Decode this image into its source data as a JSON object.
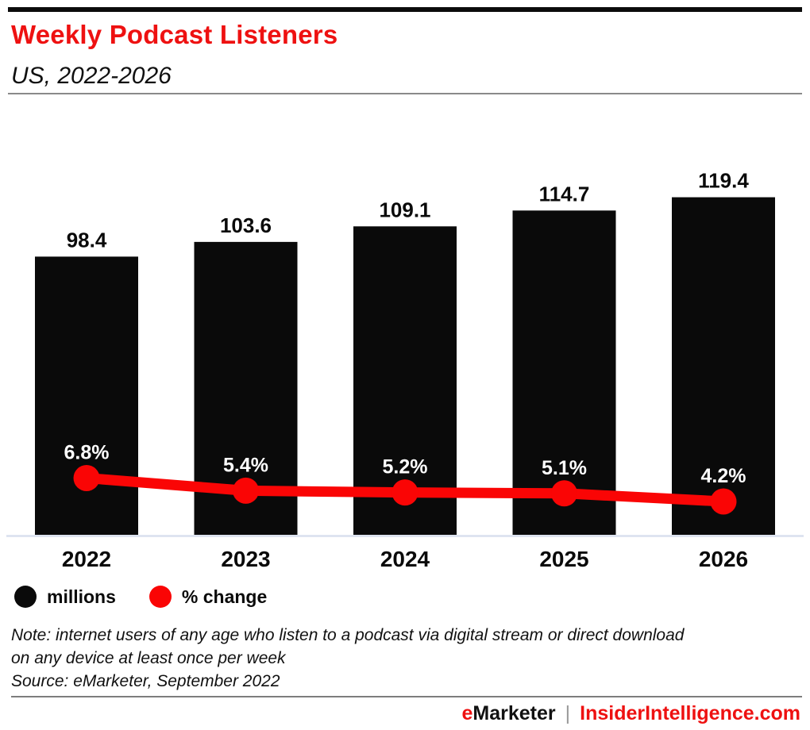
{
  "header": {
    "title": "Weekly Podcast Listeners",
    "subtitle": "US, 2022-2026",
    "title_color": "#ee1111"
  },
  "chart_data": {
    "type": "bar",
    "title": "Weekly Podcast Listeners",
    "subtitle": "US, 2022-2026",
    "categories": [
      "2022",
      "2023",
      "2024",
      "2025",
      "2026"
    ],
    "series": [
      {
        "name": "millions",
        "type": "bar",
        "values": [
          98.4,
          103.6,
          109.1,
          114.7,
          119.4
        ],
        "labels": [
          "98.4",
          "103.6",
          "109.1",
          "114.7",
          "119.4"
        ],
        "color": "#0a0a0a"
      },
      {
        "name": "% change",
        "type": "line",
        "values": [
          6.8,
          5.4,
          5.2,
          5.1,
          4.2
        ],
        "labels": [
          "6.8%",
          "5.4%",
          "5.2%",
          "5.1%",
          "4.2%"
        ],
        "color": "#fa0505"
      }
    ],
    "xlabel": "",
    "ylabel": "",
    "grid": false,
    "legend_position": "bottom-left",
    "value_labels_shown": true
  },
  "legend": {
    "items": [
      {
        "label": "millions",
        "color": "#0a0a0a"
      },
      {
        "label": "% change",
        "color": "#fa0505"
      }
    ]
  },
  "notes": {
    "note_line1": "Note: internet users of any age who listen to a podcast via digital stream or direct download",
    "note_line2": "on any device at least once per week",
    "source": "Source: eMarketer, September 2022"
  },
  "footer": {
    "brand_initial": "e",
    "brand_rest": "Marketer",
    "separator": "|",
    "site": "InsiderIntelligence.com",
    "accent_color": "#ee1111"
  }
}
